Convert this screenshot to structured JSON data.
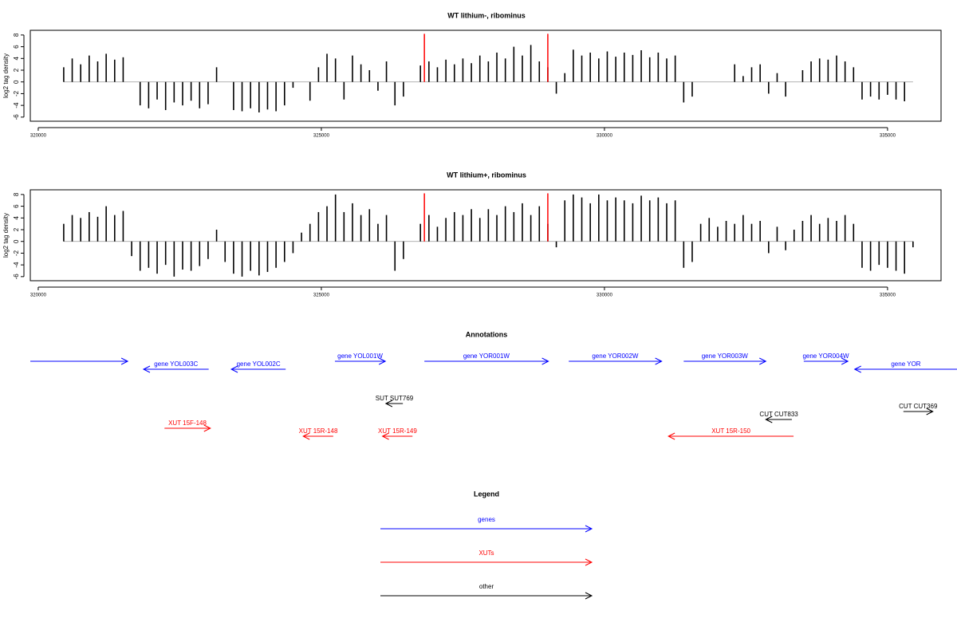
{
  "chart_data": [
    {
      "type": "bar",
      "title": "WT lithium-, ribominus",
      "y_label": "log2 tag density",
      "color": "#000000",
      "x": [
        320450,
        320600,
        320750,
        320900,
        321050,
        321200,
        321350,
        321500,
        321650,
        321800,
        321950,
        322100,
        322250,
        322400,
        322550,
        322700,
        322850,
        323000,
        323150,
        323300,
        323450,
        323600,
        323750,
        323900,
        324050,
        324200,
        324350,
        324500,
        324650,
        324800,
        324950,
        325100,
        325250,
        325400,
        325550,
        325700,
        325850,
        326000,
        326150,
        326300,
        326450,
        326600,
        326750,
        326900,
        327050,
        327200,
        327350,
        327500,
        327650,
        327800,
        327950,
        328100,
        328250,
        328400,
        328550,
        328700,
        328850,
        329000,
        329150,
        329300,
        329450,
        329600,
        329750,
        329900,
        330050,
        330200,
        330350,
        330500,
        330650,
        330800,
        330950,
        331100,
        331250,
        331400,
        331550,
        331700,
        331850,
        332000,
        332150,
        332300,
        332450,
        332600,
        332750,
        332900,
        333050,
        333200,
        333350,
        333500,
        333650,
        333800,
        333950,
        334100,
        334250,
        334400,
        334550,
        334700,
        334850,
        335000,
        335150,
        335300,
        335450
      ],
      "values": [
        2.5,
        4,
        3,
        4.5,
        3.5,
        4.8,
        3.8,
        4.2,
        null,
        -4,
        -4.5,
        -3,
        -4.8,
        -3.5,
        -4,
        -3.2,
        -4.5,
        -3.8,
        2.5,
        null,
        -4.8,
        -5,
        -4.5,
        -5.2,
        -4.7,
        -5,
        -4,
        -1,
        null,
        -3.2,
        2.5,
        4.8,
        4,
        -3,
        4.5,
        3,
        2,
        -1.5,
        3.5,
        -4,
        -2.5,
        null,
        2.8,
        3.5,
        2.5,
        3.8,
        3,
        4,
        3.2,
        4.5,
        3.5,
        5,
        4,
        6,
        4.5,
        6.3,
        3.5,
        2.5,
        -2,
        1.5,
        5.5,
        4.5,
        5,
        4,
        5.2,
        4.3,
        5,
        4.6,
        5.4,
        4.2,
        5,
        4,
        4.5,
        -3.5,
        -2.5,
        null,
        null,
        null,
        null,
        3,
        1,
        2.5,
        3,
        -2,
        1.5,
        -2.5,
        null,
        2,
        3.5,
        4,
        3.8,
        4.5,
        3.5,
        2.5,
        -3,
        -2.5,
        -3,
        -2.2,
        -3,
        -3.3,
        null
      ],
      "markers": {
        "x": [
          326820,
          329000
        ],
        "values": [
          8.2,
          8.2
        ],
        "color": "#ff0000"
      },
      "xlim": [
        319860,
        335945
      ],
      "ylim": [
        -6.7,
        8.8
      ],
      "xticks": [
        320000,
        325000,
        330000,
        335000
      ],
      "yticks": [
        8,
        6,
        4,
        2,
        0,
        -2,
        -4,
        -6
      ]
    },
    {
      "type": "bar",
      "title": "WT lithium+, ribominus",
      "y_label": "log2 tag density",
      "color": "#000000",
      "x": [
        320450,
        320600,
        320750,
        320900,
        321050,
        321200,
        321350,
        321500,
        321650,
        321800,
        321950,
        322100,
        322250,
        322400,
        322550,
        322700,
        322850,
        323000,
        323150,
        323300,
        323450,
        323600,
        323750,
        323900,
        324050,
        324200,
        324350,
        324500,
        324650,
        324800,
        324950,
        325100,
        325250,
        325400,
        325550,
        325700,
        325850,
        326000,
        326150,
        326300,
        326450,
        326600,
        326750,
        326900,
        327050,
        327200,
        327350,
        327500,
        327650,
        327800,
        327950,
        328100,
        328250,
        328400,
        328550,
        328700,
        328850,
        329000,
        329150,
        329300,
        329450,
        329600,
        329750,
        329900,
        330050,
        330200,
        330350,
        330500,
        330650,
        330800,
        330950,
        331100,
        331250,
        331400,
        331550,
        331700,
        331850,
        332000,
        332150,
        332300,
        332450,
        332600,
        332750,
        332900,
        333050,
        333200,
        333350,
        333500,
        333650,
        333800,
        333950,
        334100,
        334250,
        334400,
        334550,
        334700,
        334850,
        335000,
        335150,
        335300,
        335450
      ],
      "values": [
        3,
        4.5,
        4,
        5,
        4.2,
        6,
        4.5,
        5.2,
        -2.5,
        -5,
        -4.5,
        -5.5,
        -4,
        -6,
        -4.8,
        -5,
        -4.2,
        -3,
        2,
        -3.5,
        -5.5,
        -6,
        -5,
        -5.8,
        -5.2,
        -4.5,
        -3.5,
        -2,
        1.5,
        3,
        5,
        6,
        8,
        5,
        6.5,
        4.5,
        5.5,
        3,
        4.5,
        -5,
        -3,
        null,
        3,
        4.5,
        2.5,
        4,
        5,
        4.5,
        5.5,
        4,
        5.5,
        4.5,
        6,
        5,
        6.5,
        4.5,
        6,
        3,
        -1,
        7,
        8,
        7.5,
        6.5,
        8,
        7,
        7.5,
        7,
        6.5,
        7.8,
        7,
        7.5,
        6.5,
        7,
        -4.5,
        -3.5,
        3,
        4,
        2.5,
        3.5,
        3,
        4.5,
        3,
        3.5,
        -2,
        2.5,
        -1.5,
        2,
        3.5,
        4.5,
        3,
        4,
        3.5,
        4.5,
        3,
        -4.5,
        -5,
        -4,
        -4.5,
        -5,
        -5.5,
        -1
      ],
      "markers": {
        "x": [
          326820,
          329000
        ],
        "values": [
          8.2,
          8.2
        ],
        "color": "#ff0000"
      },
      "xlim": [
        319860,
        335945
      ],
      "ylim": [
        -6.7,
        8.8
      ],
      "xticks": [
        320000,
        325000,
        330000,
        335000
      ],
      "yticks": [
        8,
        6,
        4,
        2,
        0,
        -2,
        -4,
        -6
      ]
    }
  ],
  "annotations": {
    "title": "Annotations",
    "features": [
      {
        "color": "#0000ff",
        "from": 319860,
        "to": 321580
      },
      {
        "label": "gene YOL003C",
        "color": "#0000ff",
        "from": 323010,
        "to": 321860
      },
      {
        "label": "gene YOL002C",
        "color": "#0000ff",
        "from": 324370,
        "to": 323410
      },
      {
        "label": "gene YOL001W",
        "color": "#0000ff",
        "from": 325240,
        "to": 326130
      },
      {
        "label": "gene YOR001W",
        "color": "#0000ff",
        "from": 326820,
        "to": 329010
      },
      {
        "label": "gene YOR002W",
        "color": "#0000ff",
        "from": 329370,
        "to": 331010
      },
      {
        "label": "gene YOR003W",
        "color": "#0000ff",
        "from": 331400,
        "to": 332850
      },
      {
        "label": "gene YOR004W",
        "color": "#0000ff",
        "from": 333520,
        "to": 334300
      },
      {
        "label": "gene YOR",
        "color": "#0000ff",
        "from": 336230,
        "to": 334420
      },
      {
        "label": "SUT SUT769",
        "color": "#000000",
        "from": 326440,
        "to": 326140
      },
      {
        "label": "CUT CUT833",
        "color": "#000000",
        "from": 333310,
        "to": 332850
      },
      {
        "label": "CUT CUT369",
        "color": "#000000",
        "from": 335280,
        "to": 335800
      },
      {
        "label": "XUT 15F-148",
        "color": "#ff0000",
        "from": 322230,
        "to": 323040
      },
      {
        "label": "XUT 15R-148",
        "color": "#ff0000",
        "from": 325210,
        "to": 324680
      },
      {
        "label": "XUT 15R-149",
        "color": "#ff0000",
        "from": 326610,
        "to": 326080
      },
      {
        "label": "XUT 15R-150",
        "color": "#ff0000",
        "from": 333340,
        "to": 331130
      }
    ]
  },
  "legend": {
    "title": "Legend",
    "items": [
      {
        "label": "genes",
        "color": "#0000ff"
      },
      {
        "label": "XUTs",
        "color": "#ff0000"
      },
      {
        "label": "other",
        "color": "#000000"
      }
    ]
  }
}
